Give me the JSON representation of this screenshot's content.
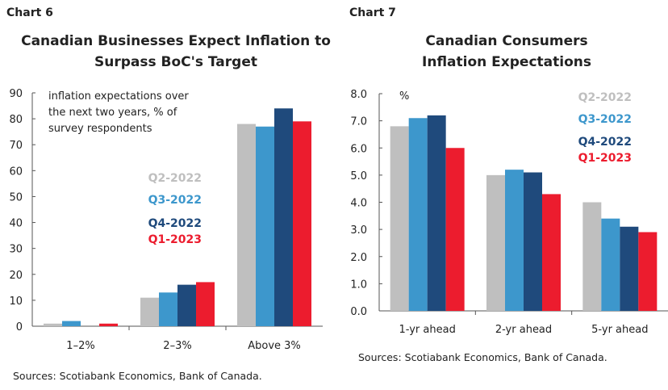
{
  "chart_data": [
    {
      "type": "bar",
      "label": "Chart 6",
      "title": [
        "Canadian Businesses Expect Inflation to",
        "Surpass BoC's Target"
      ],
      "annotation": [
        "inflation expectations over",
        "the next two years, % of",
        "survey respondents"
      ],
      "categories": [
        "1–2%",
        "2–3%",
        "Above 3%"
      ],
      "ylim": [
        0,
        90
      ],
      "yticks": [
        "0",
        "10",
        "20",
        "30",
        "40",
        "50",
        "60",
        "70",
        "80",
        "90"
      ],
      "legend_placement": "center",
      "series": [
        {
          "name": "Q2-2022",
          "color": "#bfbfbf",
          "values": [
            1,
            11,
            78
          ]
        },
        {
          "name": "Q3-2022",
          "color": "#3d97cc",
          "values": [
            2,
            13,
            77
          ]
        },
        {
          "name": "Q4-2022",
          "color": "#1f4a7c",
          "values": [
            0,
            16,
            84
          ]
        },
        {
          "name": "Q1-2023",
          "color": "#ec1c2e",
          "values": [
            1,
            17,
            79
          ]
        }
      ],
      "source": "Sources: Scotiabank Economics, Bank of Canada."
    },
    {
      "type": "bar",
      "label": "Chart 7",
      "title": [
        "Canadian Consumers",
        "Inflation Expectations"
      ],
      "annotation": [
        "%"
      ],
      "categories": [
        "1-yr ahead",
        "2-yr ahead",
        "5-yr ahead"
      ],
      "ylim": [
        0,
        8
      ],
      "yticks": [
        "0.0",
        "1.0",
        "2.0",
        "3.0",
        "4.0",
        "5.0",
        "6.0",
        "7.0",
        "8.0"
      ],
      "legend_placement": "top-right",
      "series": [
        {
          "name": "Q2-2022",
          "color": "#bfbfbf",
          "values": [
            6.8,
            5.0,
            4.0
          ]
        },
        {
          "name": "Q3-2022",
          "color": "#3d97cc",
          "values": [
            7.1,
            5.2,
            3.4
          ]
        },
        {
          "name": "Q4-2022",
          "color": "#1f4a7c",
          "values": [
            7.2,
            5.1,
            3.1
          ]
        },
        {
          "name": "Q1-2023",
          "color": "#ec1c2e",
          "values": [
            6.0,
            4.3,
            2.9
          ]
        }
      ],
      "source": "Sources: Scotiabank Economics, Bank of Canada."
    }
  ]
}
